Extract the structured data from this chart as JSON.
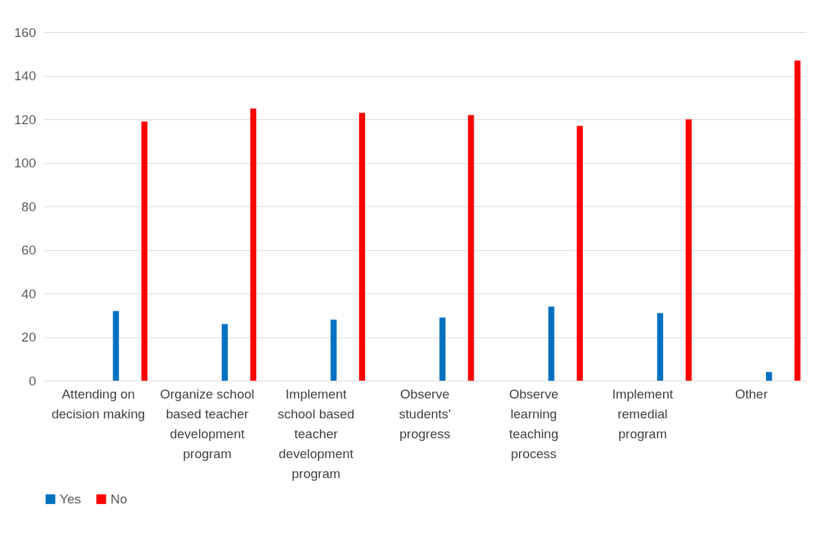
{
  "chart_data": {
    "type": "bar",
    "categories": [
      "Attending on decision making",
      "Organize school based teacher development program",
      "Implement school based teacher development program",
      "Observe students' progress",
      "Observe learning teaching process",
      "Implement remedial program",
      "Other"
    ],
    "series": [
      {
        "name": "Yes",
        "color": "#0070c0",
        "values": [
          32,
          26,
          28,
          29,
          34,
          31,
          4
        ]
      },
      {
        "name": "No",
        "color": "#ff0000",
        "values": [
          119,
          125,
          123,
          122,
          117,
          120,
          147
        ]
      }
    ],
    "ylim": [
      0,
      160
    ],
    "yticks": [
      0,
      20,
      40,
      60,
      80,
      100,
      120,
      140,
      160
    ],
    "grid": "y",
    "legend": "bottom"
  }
}
